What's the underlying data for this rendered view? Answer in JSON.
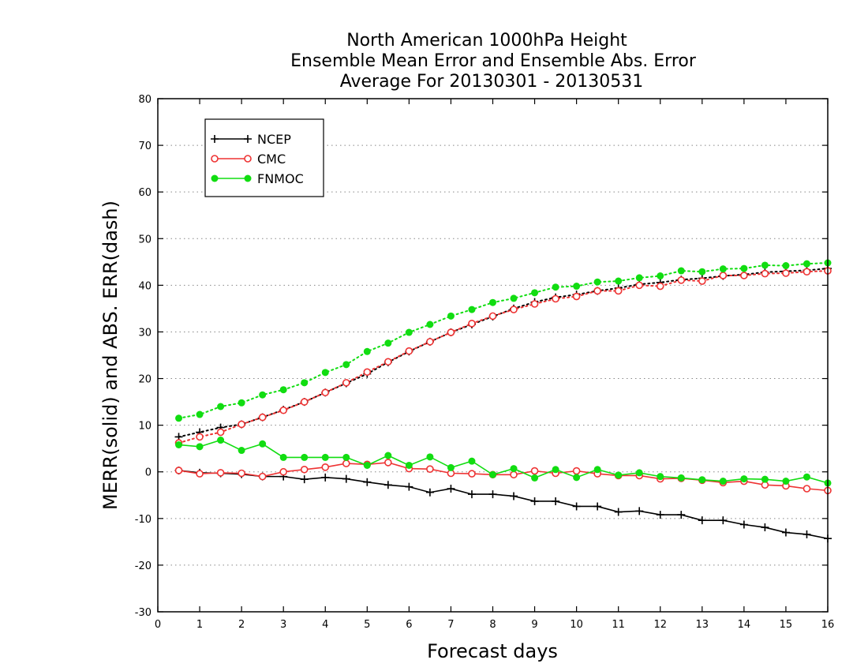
{
  "chart_data": {
    "type": "line",
    "title_lines": [
      "North American 1000hPa Height",
      "Ensemble Mean Error and Ensemble Abs. Error",
      "Average For 20130301 - 20130531"
    ],
    "xlabel": "Forecast days",
    "ylabel": "MERR(solid) and ABS. ERR(dash)",
    "xlim": [
      0,
      16
    ],
    "ylim": [
      -30,
      80
    ],
    "x_ticks": [
      0,
      1,
      2,
      3,
      4,
      5,
      6,
      7,
      8,
      9,
      10,
      11,
      12,
      13,
      14,
      15,
      16
    ],
    "y_ticks": [
      -30,
      -20,
      -10,
      0,
      10,
      20,
      30,
      40,
      50,
      60,
      70,
      80
    ],
    "grid": "horizontal dotted",
    "legend_position": "top-left",
    "x": [
      0.5,
      1,
      1.5,
      2,
      2.5,
      3,
      3.5,
      4,
      4.5,
      5,
      5.5,
      6,
      6.5,
      7,
      7.5,
      8,
      8.5,
      9,
      9.5,
      10,
      10.5,
      11,
      11.5,
      12,
      12.5,
      13,
      13.5,
      14,
      14.5,
      15,
      15.5,
      16
    ],
    "series": [
      {
        "name": "NCEP",
        "color": "#000000",
        "marker": "plus",
        "mean_error": [
          0.3,
          -0.2,
          -0.3,
          -0.5,
          -1.0,
          -1.0,
          -1.6,
          -1.2,
          -1.5,
          -2.2,
          -2.8,
          -3.2,
          -4.4,
          -3.6,
          -4.8,
          -4.8,
          -5.2,
          -6.3,
          -6.3,
          -7.4,
          -7.4,
          -8.6,
          -8.4,
          -9.2,
          -9.2,
          -10.4,
          -10.4,
          -11.3,
          -11.9,
          -13.0,
          -13.4,
          -14.3
        ],
        "abs_error": [
          7.5,
          8.5,
          9.5,
          10.2,
          11.7,
          13.3,
          15.0,
          17.0,
          19.0,
          21.0,
          23.5,
          25.8,
          27.9,
          29.9,
          31.6,
          33.3,
          35.0,
          36.4,
          37.4,
          38.0,
          38.8,
          39.4,
          40.2,
          40.6,
          41.2,
          41.5,
          42.0,
          42.3,
          42.8,
          43.0,
          43.2,
          43.6
        ]
      },
      {
        "name": "CMC",
        "color": "#ee3333",
        "marker": "open-circle",
        "mean_error": [
          0.3,
          -0.4,
          -0.2,
          -0.3,
          -1.0,
          0.0,
          0.5,
          1.0,
          1.8,
          1.6,
          2.0,
          0.7,
          0.6,
          -0.3,
          -0.4,
          -0.6,
          -0.6,
          0.2,
          -0.3,
          0.2,
          -0.4,
          -0.8,
          -0.8,
          -1.5,
          -1.4,
          -1.8,
          -2.3,
          -2.0,
          -2.8,
          -3.0,
          -3.6,
          -4.0
        ],
        "abs_error": [
          6.2,
          7.5,
          8.5,
          10.2,
          11.7,
          13.2,
          15.0,
          17.0,
          19.1,
          21.4,
          23.6,
          25.9,
          27.9,
          29.9,
          31.8,
          33.4,
          34.8,
          36.0,
          37.1,
          37.6,
          38.8,
          38.8,
          40.0,
          39.8,
          41.1,
          40.9,
          42.1,
          42.1,
          42.5,
          42.6,
          42.9,
          43.1
        ]
      },
      {
        "name": "FNMOC",
        "color": "#11dd11",
        "marker": "filled-circle",
        "mean_error": [
          5.8,
          5.4,
          6.8,
          4.6,
          6.0,
          3.1,
          3.1,
          3.1,
          3.1,
          1.4,
          3.5,
          1.4,
          3.2,
          0.9,
          2.3,
          -0.6,
          0.7,
          -1.3,
          0.5,
          -1.2,
          0.5,
          -0.7,
          -0.2,
          -1.0,
          -1.3,
          -1.7,
          -2.0,
          -1.5,
          -1.6,
          -2.0,
          -1.1,
          -2.4
        ],
        "abs_error": [
          11.5,
          12.3,
          14.0,
          14.8,
          16.5,
          17.6,
          19.1,
          21.3,
          23.0,
          25.8,
          27.6,
          29.9,
          31.6,
          33.4,
          34.8,
          36.3,
          37.2,
          38.4,
          39.6,
          39.8,
          40.7,
          40.9,
          41.6,
          42.0,
          43.1,
          42.9,
          43.5,
          43.6,
          44.3,
          44.2,
          44.6,
          44.8
        ]
      }
    ]
  }
}
